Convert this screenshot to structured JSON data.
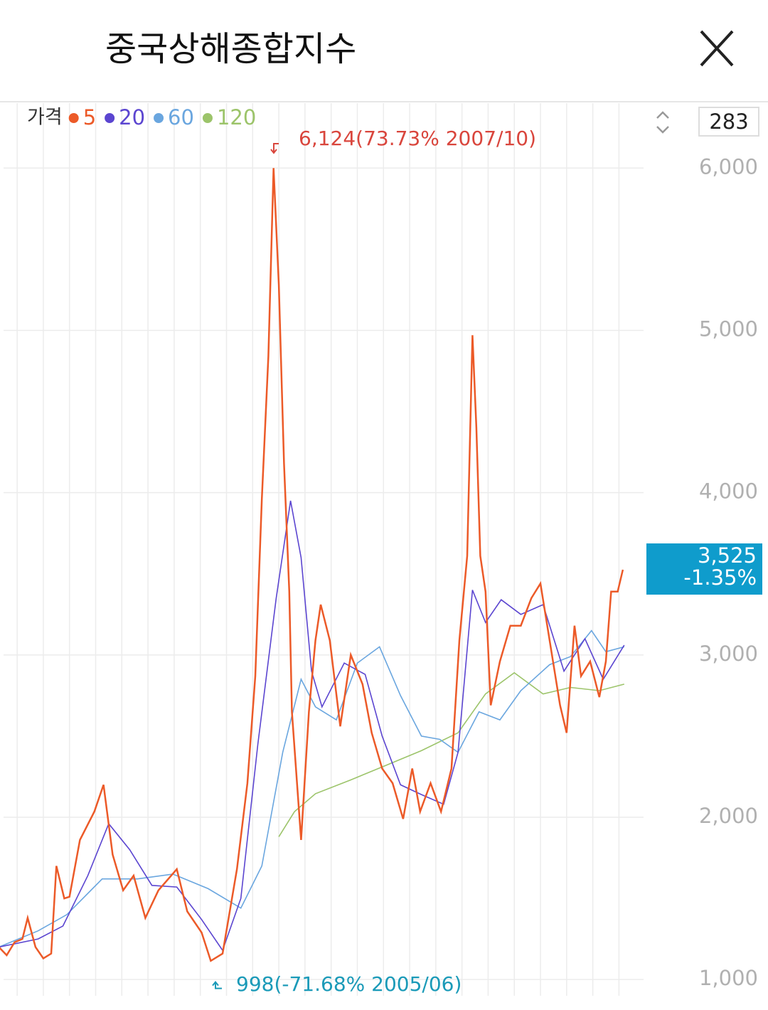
{
  "header": {
    "title": "중국상해종합지수"
  },
  "chart_data": {
    "type": "line",
    "legend_title": "가격",
    "counter": "283",
    "xlim": [
      1997.48,
      2021.94
    ],
    "xticks": [
      1998,
      1999,
      2000,
      2001,
      2002,
      2003,
      2004,
      2005,
      2006,
      2007,
      2008,
      2009,
      2010,
      2011,
      2012,
      2013,
      2014,
      2015,
      2016,
      2017,
      2018,
      2019,
      2020,
      2021
    ],
    "ylim": [
      900,
      6400
    ],
    "yticks": [
      {
        "value": 1000,
        "label": "1,000"
      },
      {
        "value": 2000,
        "label": "2,000"
      },
      {
        "value": 3000,
        "label": "3,000"
      },
      {
        "value": 4000,
        "label": "4,000"
      },
      {
        "value": 5000,
        "label": "5,000"
      },
      {
        "value": 6000,
        "label": "6,000"
      }
    ],
    "grid": true,
    "high": {
      "value": 6124,
      "label": "6,124(73.73% 2007/10)",
      "color": "#d9453c"
    },
    "low": {
      "value": 998,
      "label": "998(-71.68% 2005/06)",
      "color": "#1a9ab8"
    },
    "current": {
      "value": 3525,
      "label": "3,525",
      "change": "-1.35%",
      "color": "#0f9ccc"
    },
    "series": [
      {
        "name": "5",
        "color": "#ec5a28",
        "x": [
          1997.3,
          1997.6,
          1997.9,
          1998.2,
          1998.4,
          1998.7,
          1999.0,
          1999.3,
          1999.5,
          1999.8,
          2000.0,
          2000.4,
          2000.95,
          2001.3,
          2001.65,
          2002.05,
          2002.45,
          2002.9,
          2003.4,
          2004.1,
          2004.5,
          2005.05,
          2005.4,
          2005.85,
          2006.4,
          2006.8,
          2007.1,
          2007.35,
          2007.6,
          2007.8,
          2008.0,
          2008.2,
          2008.4,
          2008.5,
          2008.85,
          2009.15,
          2009.4,
          2009.6,
          2009.95,
          2010.35,
          2010.75,
          2011.2,
          2011.55,
          2011.95,
          2012.35,
          2012.75,
          2013.1,
          2013.4,
          2013.8,
          2014.2,
          2014.6,
          2014.9,
          2015.2,
          2015.4,
          2015.55,
          2015.7,
          2015.9,
          2016.1,
          2016.45,
          2016.85,
          2017.25,
          2017.65,
          2018.0,
          2018.35,
          2018.75,
          2019.0,
          2019.3,
          2019.55,
          2019.9,
          2020.25,
          2020.5,
          2020.7,
          2020.95,
          2021.15
        ],
        "values": [
          1200,
          1150,
          1230,
          1250,
          1380,
          1200,
          1130,
          1160,
          1700,
          1500,
          1510,
          1860,
          2035,
          2200,
          1770,
          1550,
          1640,
          1380,
          1550,
          1680,
          1420,
          1290,
          1115,
          1160,
          1680,
          2210,
          2870,
          3960,
          4840,
          6000,
          5280,
          4180,
          3390,
          2650,
          1860,
          2650,
          3090,
          3310,
          3090,
          2560,
          3000,
          2820,
          2520,
          2300,
          2210,
          1990,
          2300,
          2035,
          2210,
          2035,
          2300,
          3090,
          3610,
          4970,
          4400,
          3610,
          3390,
          2690,
          2960,
          3180,
          3180,
          3350,
          3440,
          3090,
          2690,
          2520,
          3180,
          2870,
          2960,
          2740,
          2960,
          3390,
          3390,
          3525
        ]
      },
      {
        "name": "20",
        "color": "#5b45d0",
        "x": [
          1997.3,
          1998.8,
          1999.75,
          2000.7,
          2001.5,
          2002.3,
          2003.15,
          2004.1,
          2005.05,
          2005.85,
          2006.55,
          2007.2,
          2007.9,
          2008.45,
          2008.85,
          2009.25,
          2009.65,
          2010.5,
          2011.3,
          2011.95,
          2012.65,
          2013.45,
          2014.3,
          2014.85,
          2015.4,
          2015.9,
          2016.5,
          2017.25,
          2018.1,
          2018.9,
          2019.7,
          2020.4,
          2021.2
        ],
        "values": [
          1200,
          1250,
          1330,
          1640,
          1960,
          1800,
          1580,
          1570,
          1370,
          1180,
          1500,
          2450,
          3350,
          3950,
          3600,
          2900,
          2680,
          2950,
          2880,
          2500,
          2200,
          2140,
          2080,
          2400,
          3400,
          3200,
          3340,
          3250,
          3310,
          2900,
          3100,
          2850,
          3060
        ]
      },
      {
        "name": "60",
        "color": "#6aa6df",
        "x": [
          1997.3,
          1998.8,
          1999.9,
          2001.25,
          2002.6,
          2003.95,
          2005.3,
          2006.55,
          2007.35,
          2008.15,
          2008.85,
          2009.4,
          2010.2,
          2011.0,
          2011.85,
          2012.65,
          2013.45,
          2014.15,
          2014.85,
          2015.65,
          2016.45,
          2017.25,
          2018.35,
          2019.15,
          2019.95,
          2020.5,
          2021.2
        ],
        "values": [
          1200,
          1300,
          1400,
          1620,
          1620,
          1650,
          1560,
          1440,
          1700,
          2400,
          2850,
          2680,
          2600,
          2950,
          3050,
          2750,
          2500,
          2480,
          2400,
          2650,
          2600,
          2780,
          2940,
          2990,
          3150,
          3020,
          3050
        ]
      },
      {
        "name": "120",
        "color": "#9cc46a",
        "x": [
          2008.0,
          2008.6,
          2009.4,
          2010.75,
          2012.1,
          2013.45,
          2014.85,
          2015.9,
          2017.0,
          2018.1,
          2019.15,
          2020.25,
          2021.2
        ],
        "values": [
          1880,
          2035,
          2145,
          2230,
          2320,
          2410,
          2520,
          2760,
          2890,
          2760,
          2800,
          2780,
          2820
        ]
      }
    ]
  }
}
